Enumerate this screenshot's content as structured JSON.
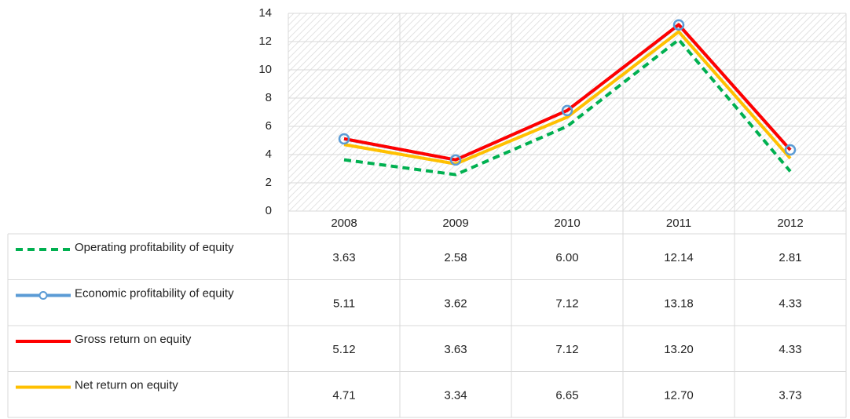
{
  "chart_data": {
    "type": "line",
    "categories": [
      "2008",
      "2009",
      "2010",
      "2011",
      "2012"
    ],
    "ylim": [
      0,
      14
    ],
    "yticks": [
      0,
      2,
      4,
      6,
      8,
      10,
      12,
      14
    ],
    "grid": true,
    "series": [
      {
        "name": "Operating profitability of equity",
        "color": "#00b050",
        "dashed": true,
        "values": [
          3.63,
          2.58,
          6.0,
          12.14,
          2.81
        ],
        "value_labels": [
          "3.63",
          "2.58",
          "6.00",
          "12.14",
          "2.81"
        ]
      },
      {
        "name": "Economic profitability of equity",
        "color": "#5b9bd5",
        "markers": true,
        "values": [
          5.11,
          3.62,
          7.12,
          13.18,
          4.33
        ],
        "value_labels": [
          "5.11",
          "3.62",
          "7.12",
          "13.18",
          "4.33"
        ]
      },
      {
        "name": "Gross return on equity",
        "color": "#ff0000",
        "values": [
          5.12,
          3.63,
          7.12,
          13.2,
          4.33
        ],
        "value_labels": [
          "5.12",
          "3.63",
          "7.12",
          "13.20",
          "4.33"
        ]
      },
      {
        "name": "Net return on equity",
        "color": "#ffc000",
        "values": [
          4.71,
          3.34,
          6.65,
          12.7,
          3.73
        ],
        "value_labels": [
          "4.71",
          "3.34",
          "6.65",
          "12.70",
          "3.73"
        ]
      }
    ]
  }
}
